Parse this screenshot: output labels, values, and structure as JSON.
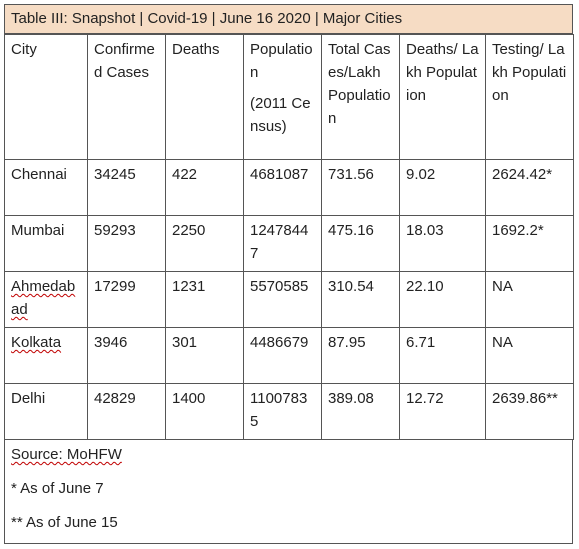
{
  "title": "Table III: Snapshot | Covid-19 | June 16 2020 | Major Cities",
  "headers": {
    "city": "City",
    "confirmed": "Confirmed Cases",
    "deaths": "Deaths",
    "population": "Population",
    "population_note": "(2011 Census)",
    "cases_per_lakh": "Total Cases/Lakh Population",
    "deaths_per_lakh": "Deaths/ Lakh Population",
    "testing_per_lakh": "Testing/ Lakh Population"
  },
  "rows": [
    {
      "city": "Chennai",
      "confirmed": "34245",
      "deaths": "422",
      "population": "4681087",
      "cases_per_lakh": "731.56",
      "deaths_per_lakh": "9.02",
      "testing_per_lakh": "2624.42*"
    },
    {
      "city": "Mumbai",
      "confirmed": "59293",
      "deaths": "2250",
      "population": "12478447",
      "cases_per_lakh": "475.16",
      "deaths_per_lakh": "18.03",
      "testing_per_lakh": "1692.2*"
    },
    {
      "city": "Ahmedabad",
      "confirmed": "17299",
      "deaths": "1231",
      "population": "5570585",
      "cases_per_lakh": "310.54",
      "deaths_per_lakh": "22.10",
      "testing_per_lakh": "NA"
    },
    {
      "city": "Kolkata",
      "confirmed": "3946",
      "deaths": "301",
      "population": "4486679",
      "cases_per_lakh": "87.95",
      "deaths_per_lakh": "6.71",
      "testing_per_lakh": "NA"
    },
    {
      "city": "Delhi",
      "confirmed": "42829",
      "deaths": "1400",
      "population": "11007835",
      "cases_per_lakh": "389.08",
      "deaths_per_lakh": "12.72",
      "testing_per_lakh": "2639.86**"
    }
  ],
  "footer": {
    "source": "Source: MoHFW",
    "note1": "* As of June 7",
    "note2": "** As of June 15"
  }
}
